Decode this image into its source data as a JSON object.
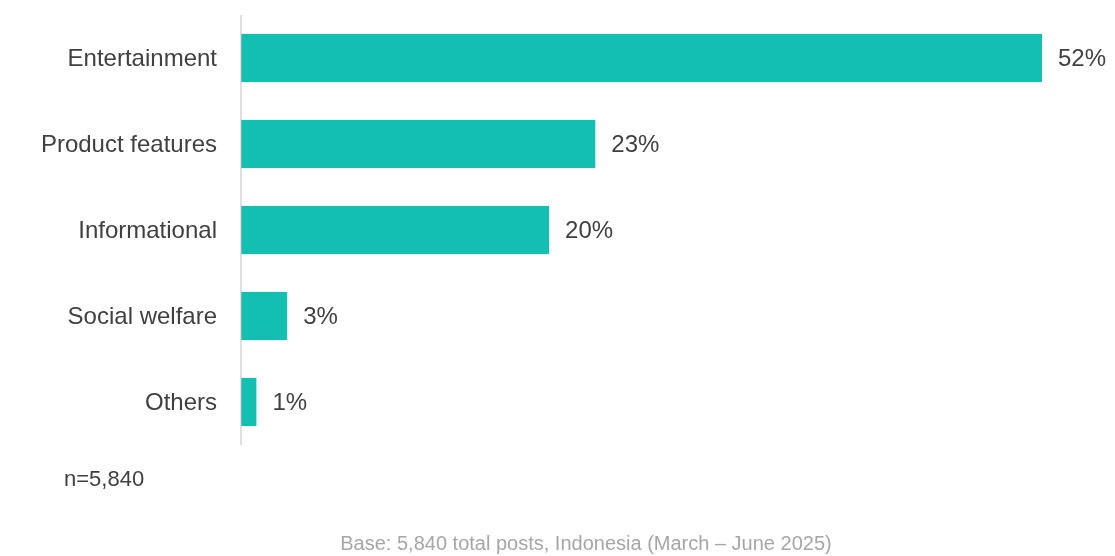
{
  "chart_data": {
    "type": "bar",
    "orientation": "horizontal",
    "categories": [
      "Entertainment",
      "Product features",
      "Informational",
      "Social welfare",
      "Others"
    ],
    "values": [
      52,
      23,
      20,
      3,
      1
    ],
    "value_labels": [
      "52%",
      "23%",
      "20%",
      "3%",
      "1%"
    ],
    "color": "#12bfb1",
    "annotations": [
      "n=5,840",
      "Base: 5,840 total posts, Indonesia (March – June 2025)"
    ]
  }
}
